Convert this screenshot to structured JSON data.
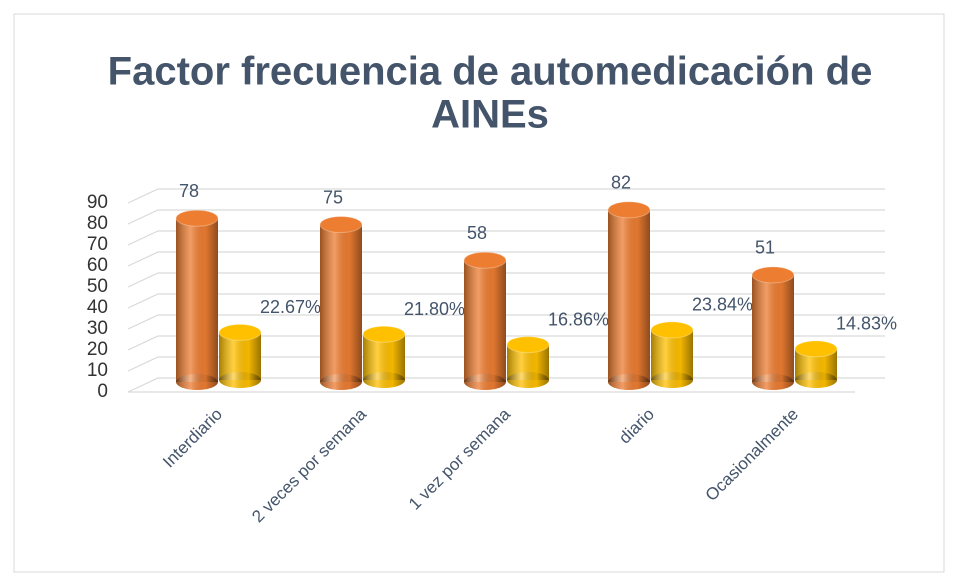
{
  "chart_data": {
    "type": "bar3d",
    "title": [
      "Factor frecuencia de automedicación de",
      "AINEs"
    ],
    "categories": [
      "Interdiario",
      "2 veces por semana",
      "1 vez por semana",
      "diario",
      "Ocasionalmente"
    ],
    "series": [
      {
        "color": "#ed7d31",
        "values": [
          78,
          75,
          58,
          82,
          51
        ]
      },
      {
        "color": "#ffc000",
        "values": [
          22.67,
          21.8,
          16.86,
          23.84,
          14.83
        ],
        "value_labels": [
          "22.67%",
          "21.80%",
          "16.86%",
          "23.84%",
          "14.83%"
        ]
      }
    ],
    "ylim": [
      0,
      90
    ],
    "yticks": [
      0,
      10,
      20,
      30,
      40,
      50,
      60,
      70,
      80,
      90
    ],
    "grid": true
  }
}
